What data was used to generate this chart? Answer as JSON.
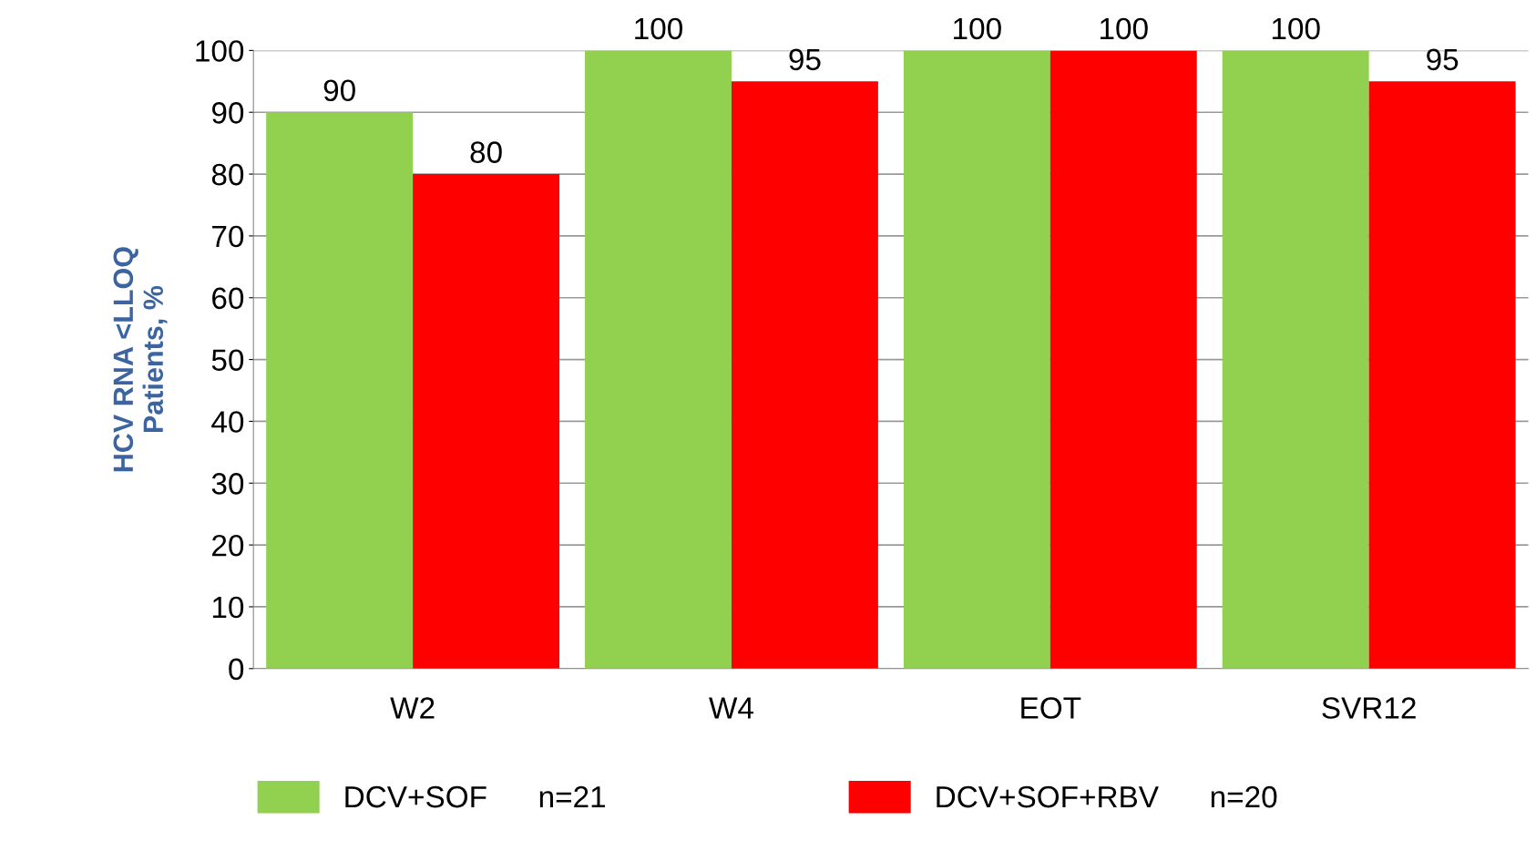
{
  "chart_data": {
    "type": "bar",
    "ylabel": "HCV RNA <LLOQ\nPatients, %",
    "categories": [
      "W2",
      "W4",
      "EOT",
      "SVR12"
    ],
    "series": [
      {
        "name": "DCV+SOF      n=21",
        "color": "#92d050",
        "values": [
          90,
          100,
          100,
          100
        ]
      },
      {
        "name": "DCV+SOF+RBV      n=20",
        "color": "#ff0000",
        "values": [
          80,
          95,
          100,
          95
        ]
      }
    ],
    "ylim": [
      0,
      100
    ],
    "yticks": [
      0,
      10,
      20,
      30,
      40,
      50,
      60,
      70,
      80,
      90,
      100
    ],
    "grid": "y",
    "legend": "bottom",
    "data_labels": true
  }
}
